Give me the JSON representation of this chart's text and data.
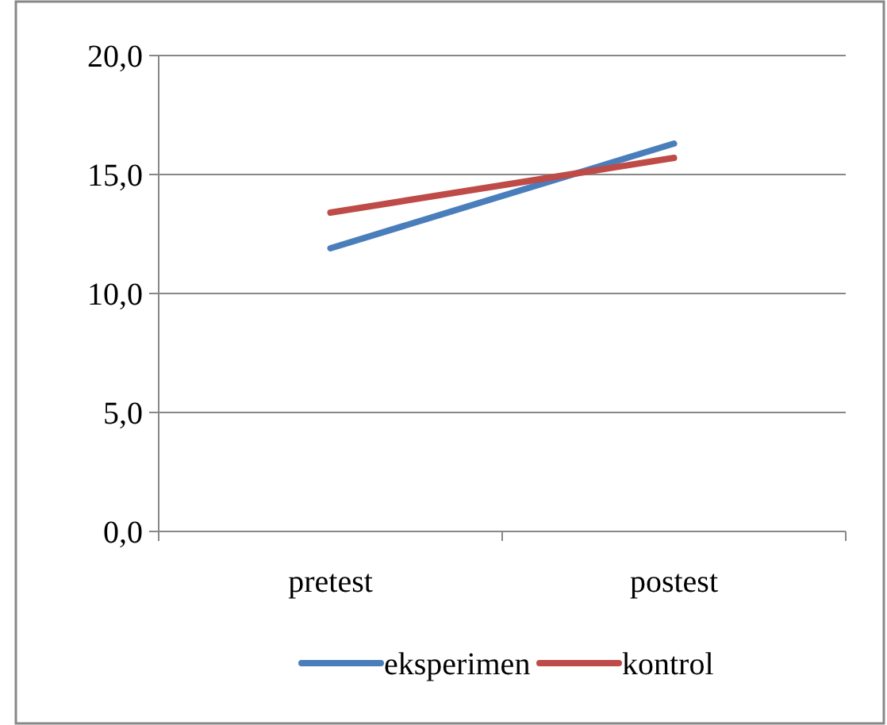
{
  "chart_data": {
    "type": "line",
    "categories": [
      "pretest",
      "postest"
    ],
    "series": [
      {
        "name": "eksperimen",
        "color": "#4a7ebb",
        "values": [
          11.9,
          16.3
        ]
      },
      {
        "name": "kontrol",
        "color": "#be4b48",
        "values": [
          13.4,
          15.7
        ]
      }
    ],
    "ylim": [
      0,
      20
    ],
    "yticks": [
      {
        "value": 0,
        "label": "0,0"
      },
      {
        "value": 5,
        "label": "5,0"
      },
      {
        "value": 10,
        "label": "10,0"
      },
      {
        "value": 15,
        "label": "15,0"
      },
      {
        "value": 20,
        "label": "20,0"
      }
    ],
    "grid": "y",
    "legend": "bottom",
    "marker": "none",
    "line_style": "solid"
  }
}
